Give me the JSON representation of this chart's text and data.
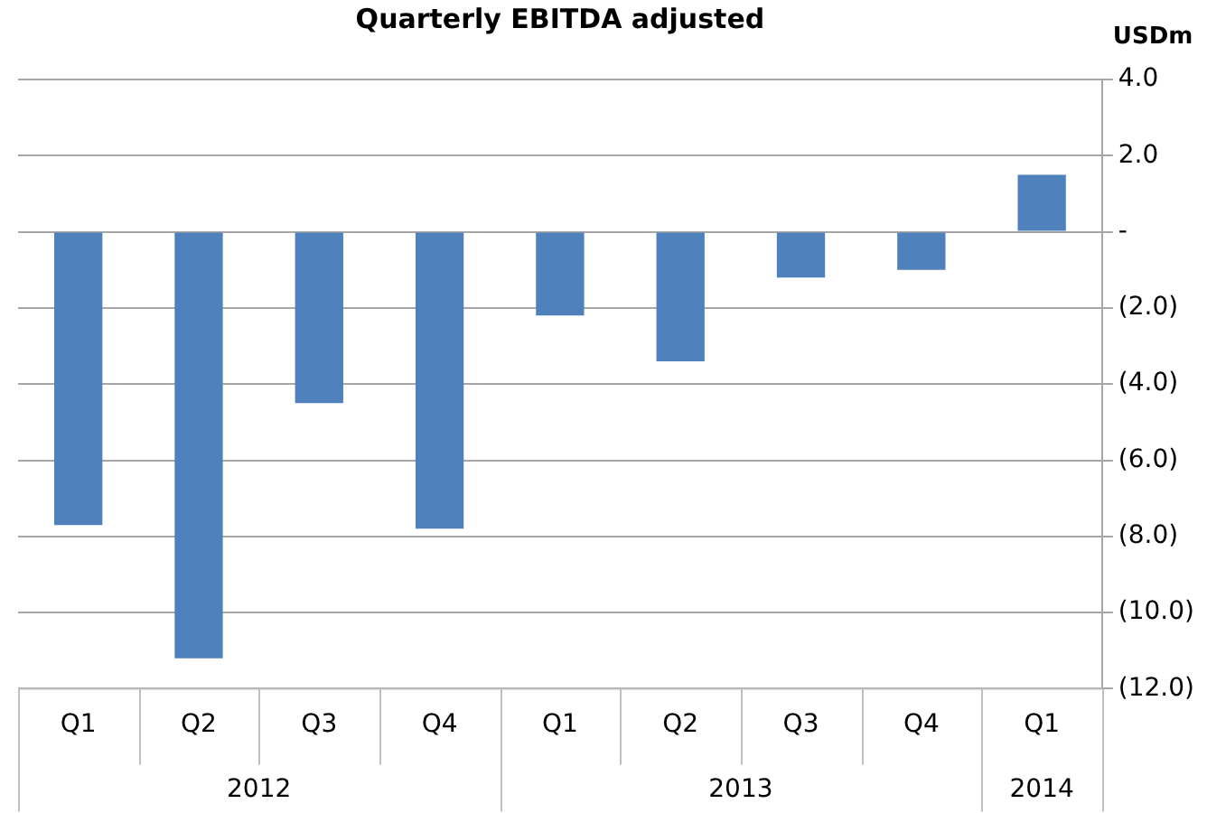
{
  "chart_data": {
    "type": "bar",
    "title": "Quarterly EBITDA adjusted",
    "ylabel": "USDm",
    "categories": [
      "Q1",
      "Q2",
      "Q3",
      "Q4",
      "Q1",
      "Q2",
      "Q3",
      "Q4",
      "Q1"
    ],
    "series": [
      {
        "color": "#4f81bd",
        "values": [
          -7.7,
          -11.2,
          -4.5,
          -7.8,
          -2.2,
          -3.4,
          -1.2,
          -1.0,
          1.5
        ]
      }
    ],
    "ylim": [
      -12,
      4
    ],
    "yticks": [
      {
        "value": -12,
        "label": "(12.0)"
      },
      {
        "value": -10,
        "label": "(10.0)"
      },
      {
        "value": -8,
        "label": "(8.0)"
      },
      {
        "value": -6,
        "label": "(6.0)"
      },
      {
        "value": -4,
        "label": "(4.0)"
      },
      {
        "value": -2,
        "label": "(2.0)"
      },
      {
        "value": 0,
        "label": "-"
      },
      {
        "value": 2,
        "label": "2.0"
      },
      {
        "value": 4,
        "label": "4.0"
      }
    ],
    "annotations": [
      "2012",
      "2013",
      "2014"
    ],
    "grid": "y",
    "legend": false
  }
}
